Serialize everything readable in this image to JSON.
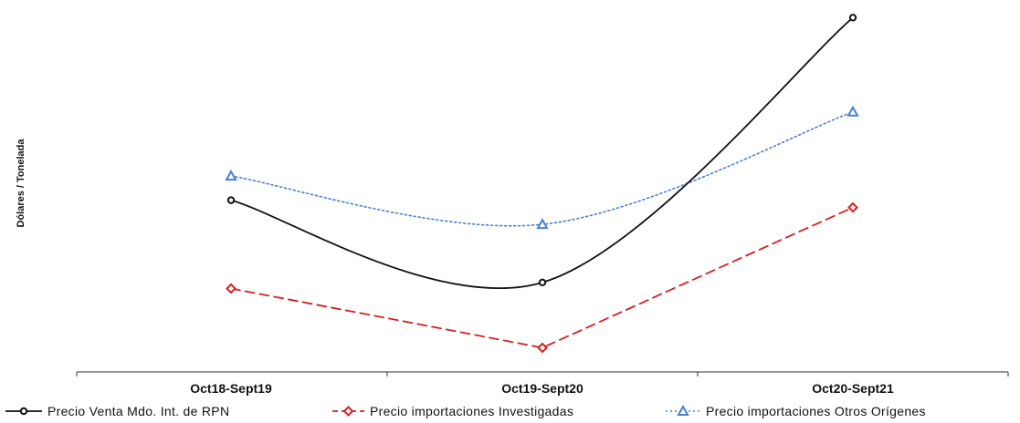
{
  "chart_data": {
    "type": "line",
    "title": "",
    "xlabel": "",
    "ylabel": "Dólares / Tonelada",
    "categories": [
      "Oct18-Sept19",
      "Oct19-Sept20",
      "Oct20-Sept21"
    ],
    "yticks_visible": false,
    "ylim": [
      0,
      3
    ],
    "grid": false,
    "legend_position": "bottom",
    "series": [
      {
        "name": "Precio Venta  Mdo. Int. de RPN",
        "values": [
          1.42,
          0.74,
          2.93
        ],
        "color": "#111111",
        "style": "solid",
        "marker": "circle",
        "curve": "smooth"
      },
      {
        "name": "Precio importaciones Investigadas",
        "values": [
          0.69,
          0.2,
          1.36
        ],
        "color": "#d42020",
        "style": "dashed",
        "marker": "diamond",
        "curve": "linear"
      },
      {
        "name": "Precio importaciones Otros Orígenes",
        "values": [
          1.62,
          1.22,
          2.15
        ],
        "color": "#4a7fd4",
        "style": "dotted",
        "marker": "triangle",
        "curve": "smooth"
      }
    ]
  }
}
